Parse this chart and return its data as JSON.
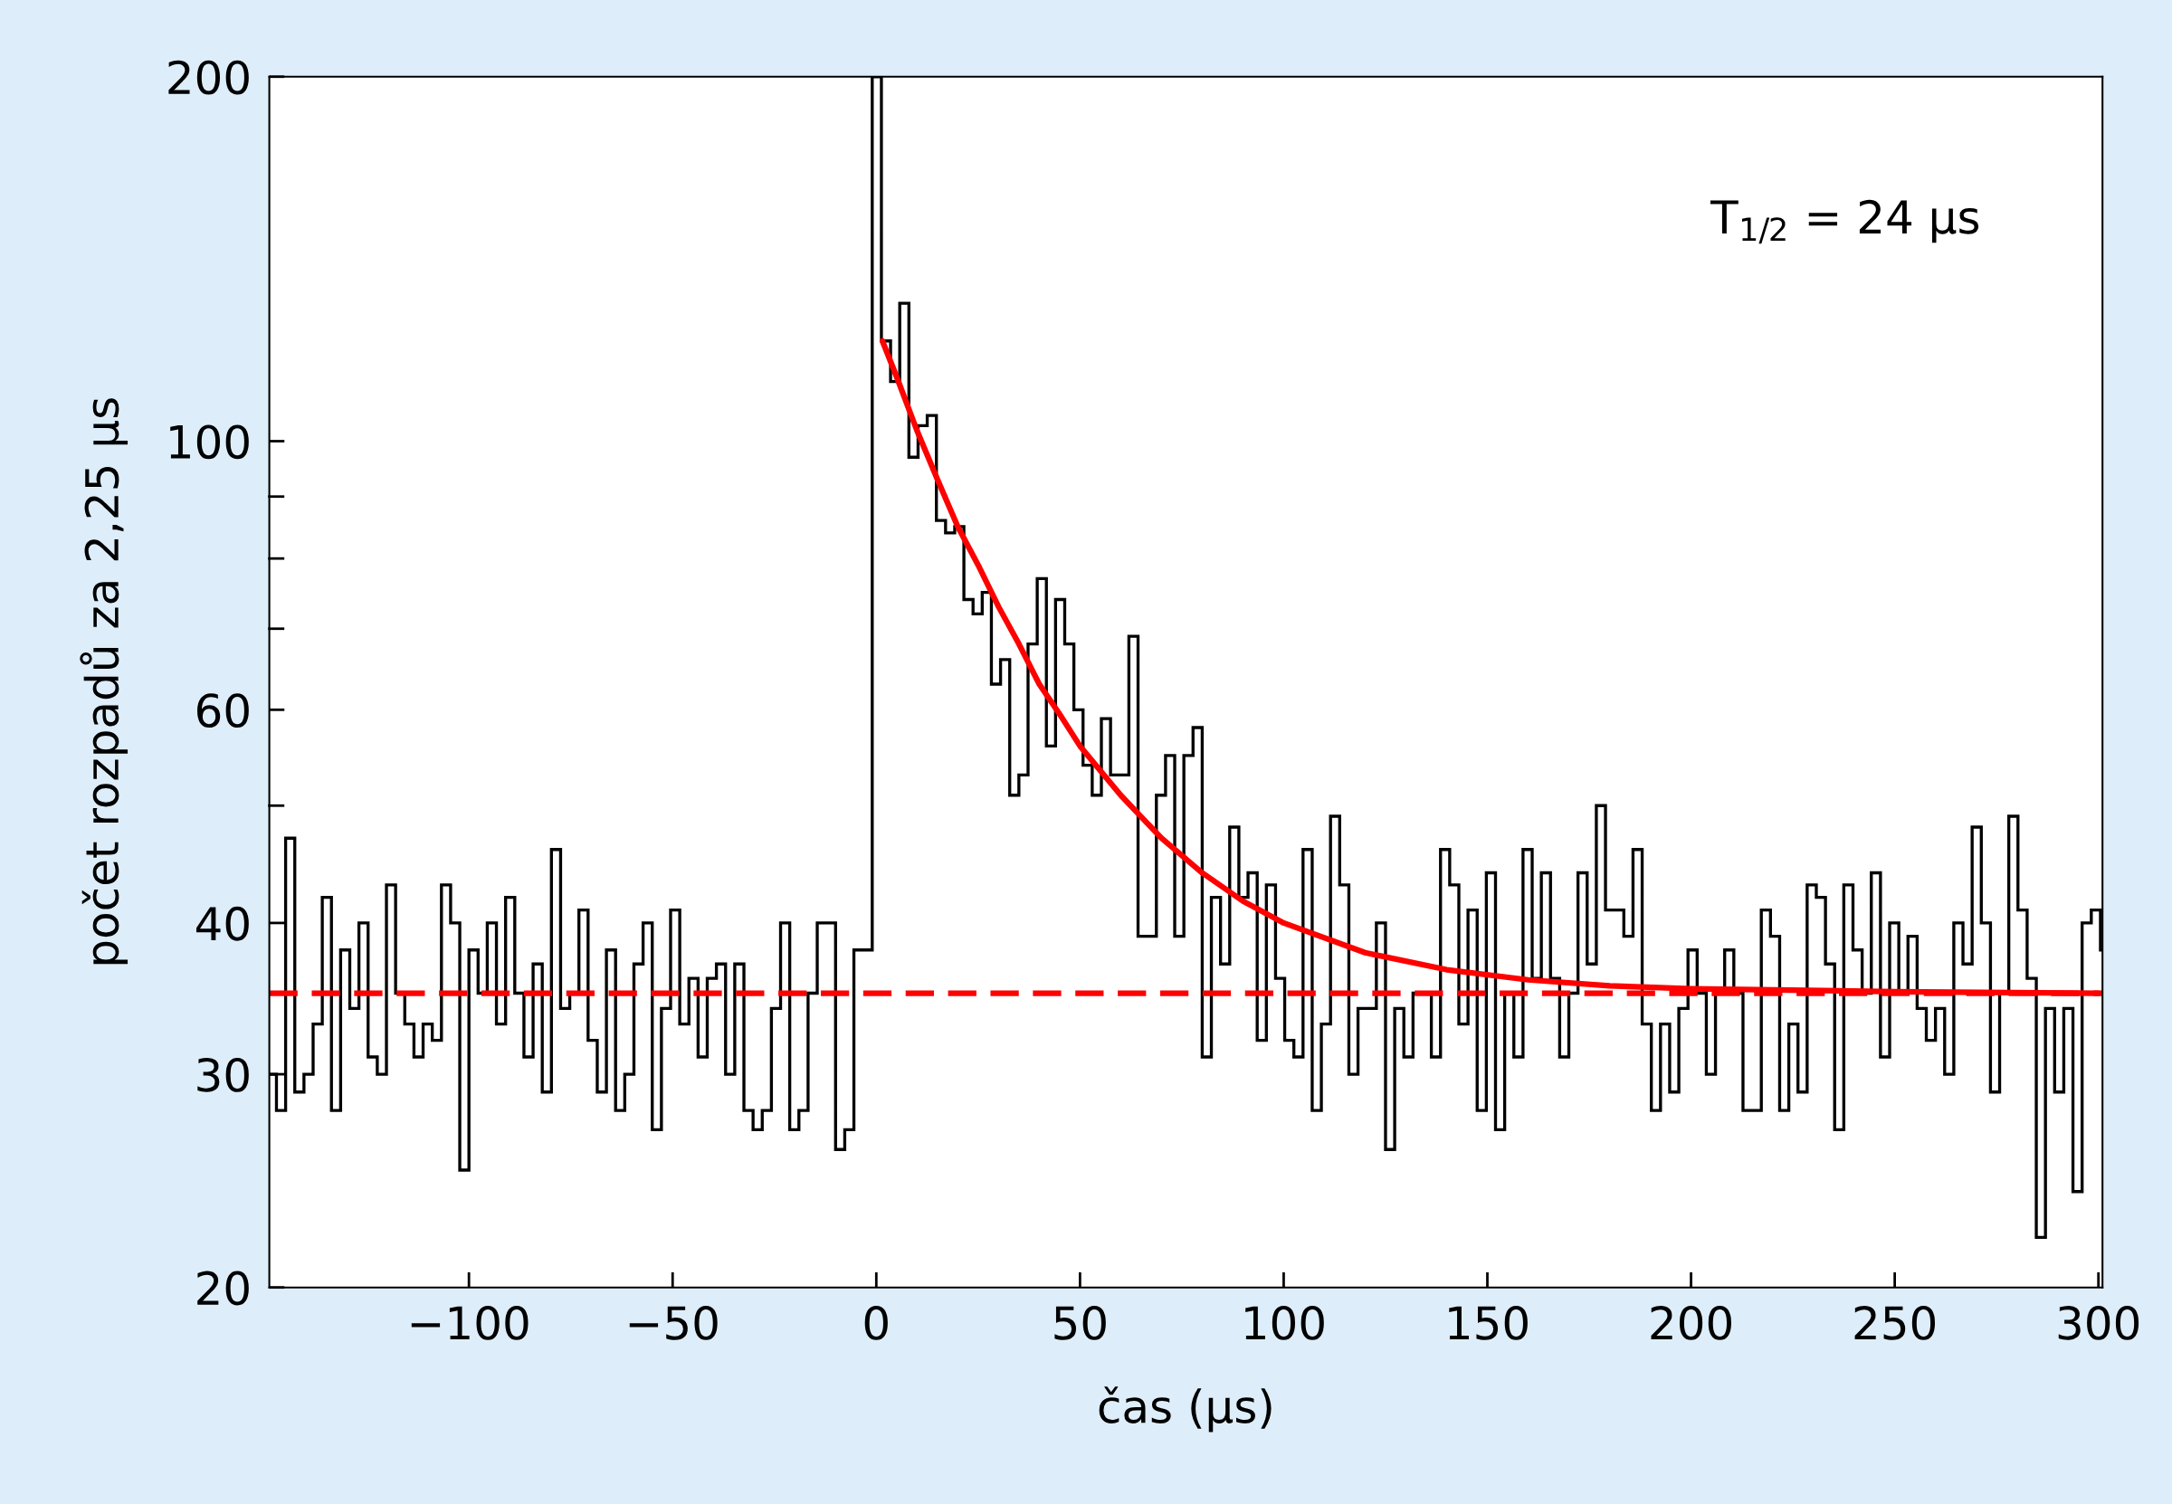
{
  "chart_data": {
    "type": "histogram",
    "xlabel": "čas (µs)",
    "ylabel": "počet rozpadů za 2,25 µs",
    "bins": [
      -149,
      -147.25,
      -145,
      -142.75,
      -140.5,
      -138.25,
      -136,
      -133.75,
      -131.5,
      -129.25,
      -127,
      -124.75,
      -122.5,
      -120.25,
      -118,
      -115.75,
      -113.5,
      -111.25,
      -109,
      -106.75,
      -104.5,
      -102.25,
      -100,
      -97.75,
      -95.5,
      -93.25,
      -91,
      -88.75,
      -86.5,
      -84.25,
      -82,
      -79.75,
      -77.5,
      -75.25,
      -73,
      -70.75,
      -68.5,
      -66.25,
      -64,
      -61.75,
      -59.5,
      -57.25,
      -55,
      -52.75,
      -50.5,
      -48.25,
      -46,
      -43.75,
      -41.5,
      -39.25,
      -37,
      -34.75,
      -32.5,
      -30.25,
      -28,
      -25.75,
      -23.5,
      -21.25,
      -19,
      -16.75,
      -14.5,
      -12.25,
      -10,
      -7.75,
      -5.5,
      -3.25,
      -1,
      1.25,
      3.5,
      5.75,
      8,
      10.25,
      12.5,
      14.75,
      17,
      19.25,
      21.5,
      23.75,
      26,
      28.25,
      30.5,
      32.75,
      35,
      37.25,
      39.5,
      41.75,
      44,
      46.25,
      48.5,
      50.75,
      53,
      55.25,
      57.5,
      59.75,
      62,
      64.25,
      66.5,
      68.75,
      71,
      73.25,
      75.5,
      77.75,
      80,
      82.25,
      84.5,
      86.75,
      89,
      91.25,
      93.5,
      95.75,
      98,
      100.25,
      102.5,
      104.75,
      107,
      109.25,
      111.5,
      113.75,
      116,
      118.25,
      120.5,
      122.75,
      125,
      127.25,
      129.5,
      131.75,
      134,
      136.25,
      138.5,
      140.75,
      143,
      145.25,
      147.5,
      149.75,
      152,
      154.25,
      156.5,
      158.75,
      161,
      163.25,
      165.5,
      167.75,
      170,
      172.25,
      174.5,
      176.75,
      179,
      181.25,
      183.5,
      185.75,
      188,
      190.25,
      192.5,
      194.75,
      197,
      199.25,
      201.5,
      203.75,
      206,
      208.25,
      210.5,
      212.75,
      215,
      217.25,
      219.5,
      221.75,
      224,
      226.25,
      228.5,
      230.75,
      233,
      235.25,
      237.5,
      239.75,
      242,
      244.25,
      246.5,
      248.75,
      251,
      253.25,
      255.5,
      257.75,
      260,
      262.25,
      264.5,
      266.75,
      269,
      271.25,
      273.5,
      275.75,
      278,
      280.25,
      282.5,
      284.75,
      287,
      289.25,
      291.5,
      293.75,
      296,
      298.25,
      300.5,
      301
    ],
    "values": [
      30,
      28,
      47,
      29,
      30,
      33,
      42,
      28,
      38,
      34,
      40,
      31,
      30,
      43,
      35,
      33,
      31,
      33,
      32,
      43,
      40,
      25,
      38,
      35,
      40,
      33,
      42,
      35,
      31,
      37,
      29,
      46,
      34,
      35,
      41,
      32,
      29,
      38,
      28,
      30,
      37,
      40,
      27,
      34,
      41,
      33,
      36,
      31,
      36,
      37,
      30,
      37,
      28,
      27,
      28,
      34,
      40,
      27,
      28,
      35,
      40,
      40,
      26,
      27,
      38,
      38,
      200,
      121,
      112,
      130,
      97,
      103,
      105,
      86,
      84,
      85,
      74,
      72,
      75,
      63,
      66,
      51,
      53,
      68,
      77,
      56,
      74,
      68,
      60,
      54,
      51,
      59,
      53,
      53,
      69,
      39,
      39,
      51,
      55,
      39,
      55,
      58,
      31,
      42,
      37,
      48,
      42,
      44,
      32,
      43,
      36,
      32,
      31,
      46,
      28,
      33,
      49,
      43,
      30,
      34,
      34,
      40,
      26,
      34,
      31,
      35,
      35,
      31,
      46,
      43,
      33,
      41,
      28,
      44,
      27,
      35,
      31,
      46,
      36,
      44,
      36,
      31,
      35,
      44,
      37,
      50,
      41,
      41,
      39,
      46,
      33,
      28,
      33,
      29,
      34,
      38,
      35,
      30,
      35,
      38,
      35,
      28,
      28,
      41,
      39,
      28,
      33,
      29,
      43,
      42,
      37,
      27,
      43,
      38,
      35,
      44,
      31,
      40,
      35,
      39,
      34,
      32,
      34,
      30,
      40,
      37,
      48,
      40,
      29,
      35,
      49,
      41,
      36,
      22,
      34,
      29,
      34,
      24,
      40,
      41,
      38
    ],
    "color": "#000000",
    "log": "y",
    "xlim": [
      -149,
      301
    ],
    "ylim": [
      20,
      200
    ],
    "xticks": [
      {
        "value": -100,
        "label": "−100"
      },
      {
        "value": -50,
        "label": "−50"
      },
      0,
      50,
      100,
      150,
      200,
      250,
      300
    ],
    "yticks": [
      20,
      30,
      40,
      {
        "value": 50,
        "label": null
      },
      60,
      {
        "value": 70,
        "label": null
      },
      {
        "value": 80,
        "label": null
      },
      {
        "value": 90,
        "label": null
      },
      100,
      200
    ],
    "series": [
      {
        "type": "line",
        "color": "#ff0000",
        "x": [
          1.5,
          5,
          10,
          15,
          20,
          25,
          30,
          35,
          40,
          45,
          50,
          60,
          70,
          80,
          90,
          100,
          120,
          140,
          160,
          180,
          200,
          250,
          300
        ],
        "values": [
          121,
          113,
          102,
          93,
          85,
          79,
          73,
          68,
          63,
          59.5,
          56,
          51,
          47,
          44,
          41.7,
          40,
          37.8,
          36.6,
          35.9,
          35.5,
          35.3,
          35.1,
          35
        ]
      }
    ],
    "ref_lines": [
      {
        "axis": "y",
        "value": 35,
        "color": "#ff0000",
        "line_style": "dashed"
      }
    ],
    "annotations": [
      "T$_{1/2}$ = 24 µs"
    ]
  }
}
